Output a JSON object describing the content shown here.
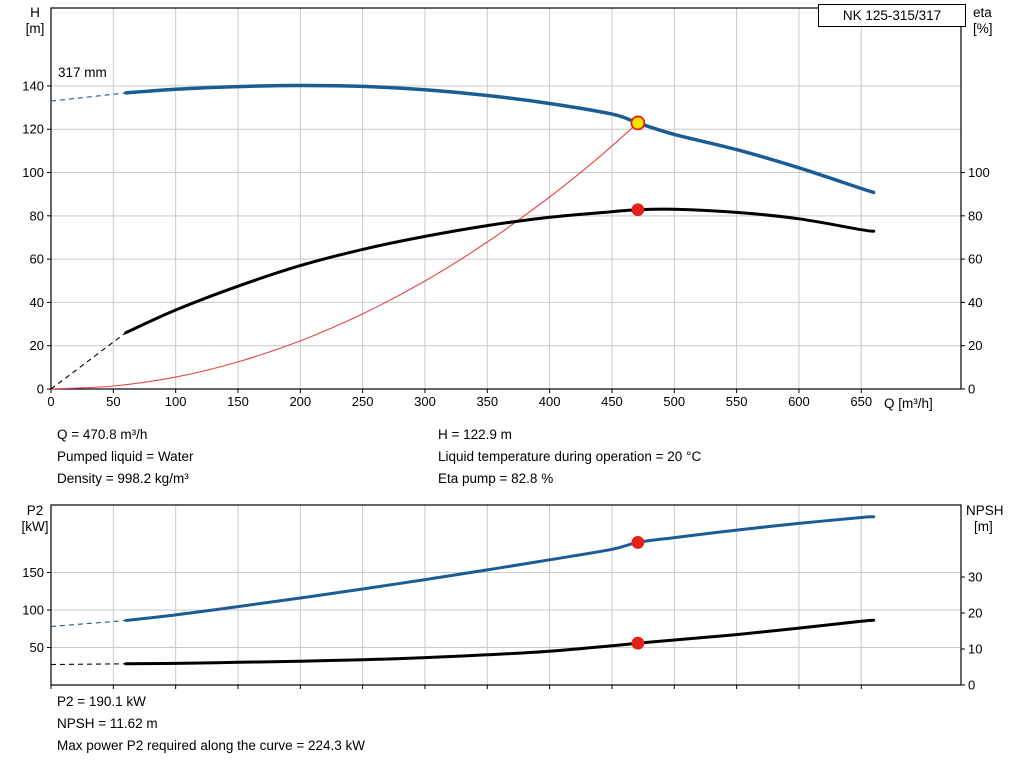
{
  "title_box": "NK 125-315/317",
  "colors": {
    "curve_blue": "#1c5c94",
    "curve_black": "#000000",
    "curve_red": "#e64545",
    "marker_yellow": "#ffe000",
    "marker_red": "#e32219",
    "grid": "#c9c9c9",
    "axis": "#000000"
  },
  "chart_data": [
    {
      "type": "line",
      "impeller_label": "317 mm",
      "left_axis": {
        "name": "H",
        "unit": "[m]",
        "ticks": [
          0,
          20,
          40,
          60,
          80,
          100,
          120,
          140
        ],
        "max": 176
      },
      "right_axis": {
        "name": "eta",
        "unit": "[%]",
        "ticks": [
          0,
          20,
          40,
          60,
          80,
          100
        ],
        "max": 176
      },
      "x_axis": {
        "label": "Q [m³/h]",
        "ticks": [
          0,
          50,
          100,
          150,
          200,
          250,
          300,
          350,
          400,
          450,
          500,
          550,
          600,
          650
        ],
        "max": 730,
        "show_labels": true
      },
      "series": [
        {
          "name": "system-curve",
          "axis": "left",
          "color_key": "curve_red",
          "width": 1.1,
          "points": [
            [
              0,
              0
            ],
            [
              50,
              1.4
            ],
            [
              100,
              5.5
            ],
            [
              150,
              12.5
            ],
            [
              200,
              22.2
            ],
            [
              250,
              34.7
            ],
            [
              300,
              49.9
            ],
            [
              350,
              67.9
            ],
            [
              400,
              88.7
            ],
            [
              435,
              104.8
            ],
            [
              470.8,
              122.9
            ]
          ]
        },
        {
          "name": "efficiency-curve",
          "axis": "right",
          "color_key": "curve_black",
          "width": 3,
          "dash_until": 60,
          "points": [
            [
              0,
              0
            ],
            [
              60,
              26
            ],
            [
              100,
              36.5
            ],
            [
              150,
              47.5
            ],
            [
              200,
              57
            ],
            [
              250,
              64.5
            ],
            [
              300,
              70.5
            ],
            [
              350,
              75.5
            ],
            [
              400,
              79.3
            ],
            [
              450,
              81.9
            ],
            [
              470.8,
              82.8
            ],
            [
              500,
              83
            ],
            [
              550,
              81.6
            ],
            [
              600,
              78.6
            ],
            [
              650,
              73.6
            ],
            [
              660,
              72.9
            ]
          ]
        },
        {
          "name": "head-curve",
          "axis": "left",
          "color_key": "curve_blue",
          "width": 3.5,
          "dash_until": 60,
          "points": [
            [
              0,
              133
            ],
            [
              60,
              136.8
            ],
            [
              100,
              138.5
            ],
            [
              150,
              139.7
            ],
            [
              200,
              140.2
            ],
            [
              250,
              139.8
            ],
            [
              300,
              138.2
            ],
            [
              350,
              135.6
            ],
            [
              400,
              131.9
            ],
            [
              450,
              127
            ],
            [
              470.8,
              122.9
            ],
            [
              500,
              117.6
            ],
            [
              550,
              110.6
            ],
            [
              600,
              102.2
            ],
            [
              650,
              92.6
            ],
            [
              660,
              90.8
            ]
          ]
        }
      ],
      "markers": [
        {
          "name": "duty-point",
          "axis": "left",
          "x": 470.8,
          "y": 122.9,
          "r": 6.5,
          "fill_key": "marker_yellow",
          "stroke_key": "marker_red"
        },
        {
          "name": "efficiency-point",
          "axis": "right",
          "x": 470.8,
          "y": 82.8,
          "r": 5.5,
          "fill_key": "marker_red",
          "stroke_key": "marker_red"
        }
      ]
    },
    {
      "type": "line",
      "left_axis": {
        "name": "P2",
        "unit": "[kW]",
        "ticks": [
          50,
          100,
          150
        ],
        "max": 240
      },
      "right_axis": {
        "name": "NPSH",
        "unit": "[m]",
        "ticks": [
          0,
          10,
          20,
          30
        ],
        "max": 50
      },
      "x_axis": {
        "label": "",
        "ticks": [
          0,
          50,
          100,
          150,
          200,
          250,
          300,
          350,
          400,
          450,
          500,
          550,
          600,
          650
        ],
        "max": 730,
        "show_labels": false
      },
      "series": [
        {
          "name": "p2-curve",
          "axis": "left",
          "color_key": "curve_blue",
          "width": 3,
          "dash_until": 60,
          "points": [
            [
              0,
              78
            ],
            [
              60,
              86
            ],
            [
              100,
              93.5
            ],
            [
              150,
              104.5
            ],
            [
              200,
              116
            ],
            [
              250,
              128
            ],
            [
              300,
              140.5
            ],
            [
              350,
              153.5
            ],
            [
              400,
              167
            ],
            [
              450,
              181
            ],
            [
              470.8,
              190.1
            ],
            [
              500,
              196.5
            ],
            [
              550,
              206.5
            ],
            [
              600,
              215.5
            ],
            [
              650,
              223.4
            ],
            [
              660,
              224.3
            ]
          ]
        },
        {
          "name": "npsh-curve",
          "axis": "right",
          "color_key": "curve_black",
          "width": 3,
          "dash_until": 60,
          "points": [
            [
              0,
              5.7
            ],
            [
              60,
              5.9
            ],
            [
              100,
              6.0
            ],
            [
              150,
              6.3
            ],
            [
              200,
              6.6
            ],
            [
              250,
              7.0
            ],
            [
              300,
              7.6
            ],
            [
              350,
              8.4
            ],
            [
              400,
              9.4
            ],
            [
              450,
              10.9
            ],
            [
              470.8,
              11.62
            ],
            [
              500,
              12.5
            ],
            [
              550,
              14.0
            ],
            [
              600,
              15.8
            ],
            [
              650,
              17.7
            ],
            [
              660,
              18.0
            ]
          ]
        }
      ],
      "markers": [
        {
          "name": "p2-point",
          "axis": "left",
          "x": 470.8,
          "y": 190.1,
          "r": 5.5,
          "fill_key": "marker_red",
          "stroke_key": "marker_red"
        },
        {
          "name": "npsh-point",
          "axis": "right",
          "x": 470.8,
          "y": 11.62,
          "r": 5.5,
          "fill_key": "marker_red",
          "stroke_key": "marker_red"
        }
      ]
    }
  ],
  "info_top": {
    "col1": [
      "Q = 470.8 m³/h",
      "Pumped liquid = Water",
      "Density = 998.2 kg/m³"
    ],
    "col2": [
      "H = 122.9 m",
      "Liquid temperature during operation = 20 °C",
      "Eta pump = 82.8 %"
    ]
  },
  "info_bottom": [
    "P2 = 190.1 kW",
    "NPSH = 11.62 m",
    "Max power P2 required along the curve = 224.3 kW"
  ]
}
